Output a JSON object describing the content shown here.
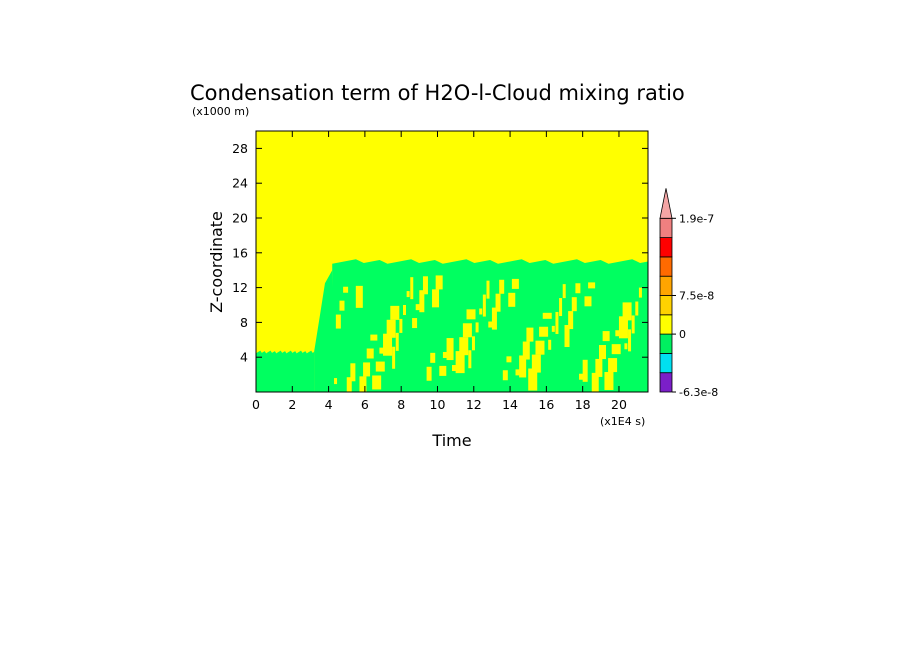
{
  "chart_data": {
    "type": "heatmap",
    "title": "Condensation term of H2O-l-Cloud mixing ratio",
    "xlabel": "Time",
    "ylabel": "Z-coordinate",
    "x_multiplier_label": "(x1E4 s)",
    "y_multiplier_label": "(x1000 m)",
    "xlim": [
      0,
      21.6
    ],
    "ylim": [
      0,
      30
    ],
    "x_ticks": [
      0,
      2,
      4,
      6,
      8,
      10,
      12,
      14,
      16,
      18,
      20
    ],
    "y_ticks": [
      4,
      8,
      12,
      16,
      20,
      24,
      28
    ],
    "x_tick_labels": [
      "0",
      "2",
      "4",
      "6",
      "8",
      "10",
      "12",
      "14",
      "16",
      "18",
      "20"
    ],
    "y_tick_labels": [
      "4",
      "8",
      "12",
      "16",
      "20",
      "24",
      "28"
    ],
    "background_level_color": "#ffff00",
    "regions": [
      {
        "desc": "low cloud layer, negative values",
        "color": "#00ff60",
        "x": [
          0,
          3.2
        ],
        "z": [
          0,
          4.6
        ]
      },
      {
        "desc": "rising cloud top",
        "color": "#00ff60",
        "x": [
          3.2,
          4.2
        ],
        "z": [
          0,
          14.0
        ]
      },
      {
        "desc": "deep cloud layer, negative values",
        "color": "#00ff60",
        "x": [
          4.2,
          21.6
        ],
        "z": [
          0,
          15.0
        ]
      }
    ],
    "colorbar": {
      "colors": [
        "#7b1fc8",
        "#00e0f0",
        "#00f060",
        "#ffff00",
        "#ffd200",
        "#ffa500",
        "#ff6a00",
        "#ff0000",
        "#f08080"
      ],
      "arrow_color": "#f4a5a5",
      "labels": [
        "1.9e-7",
        "7.5e-8",
        "0",
        "-6.3e-8"
      ]
    }
  }
}
